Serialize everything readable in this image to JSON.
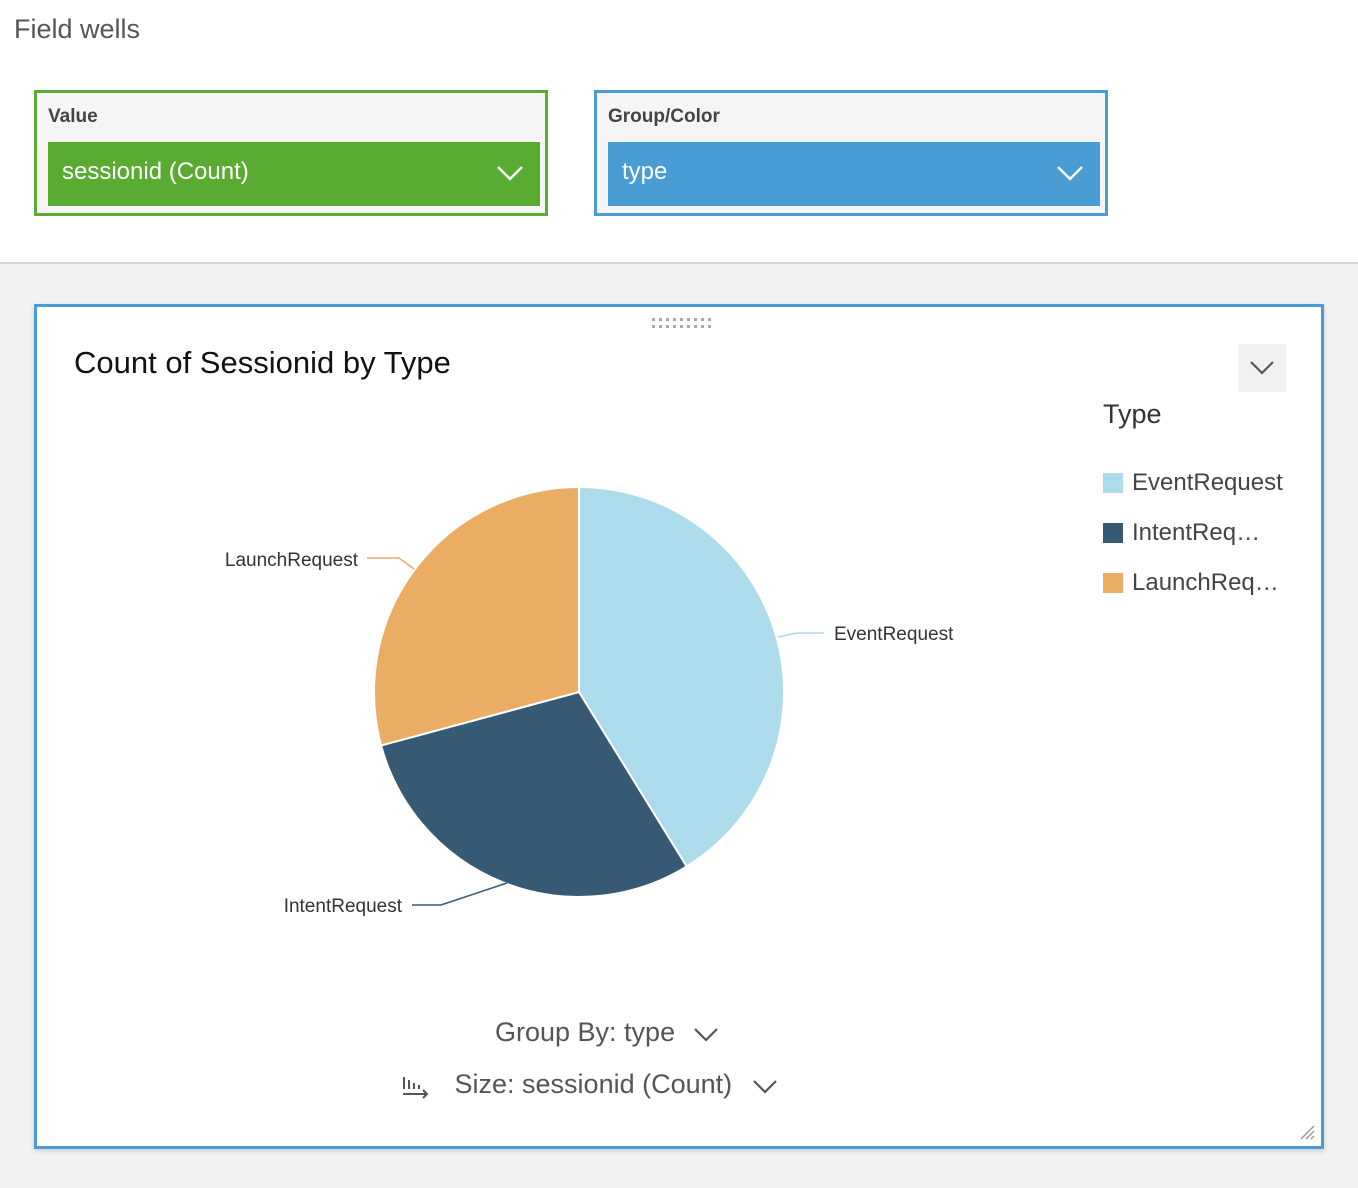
{
  "field_wells": {
    "title": "Field wells",
    "value": {
      "label": "Value",
      "field": "sessionid (Count)"
    },
    "group": {
      "label": "Group/Color",
      "field": "type"
    }
  },
  "visual": {
    "title": "Count of Sessionid by Type",
    "group_by": "Group By: type",
    "size": "Size: sessionid (Count)"
  },
  "colors": {
    "value_well": "#5aab31",
    "group_well": "#4a9cd4",
    "EventRequest": "#acdcec",
    "IntentRequest": "#365a73",
    "LaunchRequest": "#ebac63"
  },
  "chart_data": {
    "type": "pie",
    "legend": {
      "title": "Type",
      "position": "right",
      "entries": [
        "EventRequest",
        "IntentReq…",
        "LaunchReq…"
      ]
    },
    "categories": [
      "EventRequest",
      "IntentRequest",
      "LaunchRequest"
    ],
    "values": [
      41.2,
      29.6,
      29.2
    ]
  }
}
